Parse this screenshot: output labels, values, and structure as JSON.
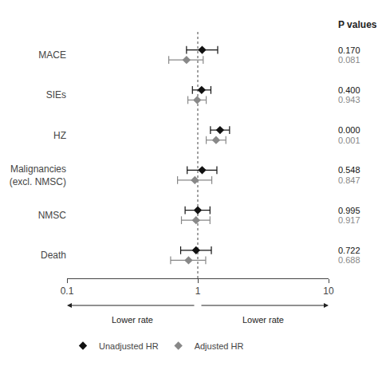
{
  "chart_data": {
    "type": "forest",
    "categories": [
      "MACE",
      "SIEs",
      "HZ",
      "Malignancies\n(excl. NMSC)",
      "NMSC",
      "Death"
    ],
    "series": [
      {
        "name": "Unadjusted HR",
        "color": "#111111",
        "marker": "diamond",
        "values": [
          1.08,
          1.07,
          1.48,
          1.08,
          1.0,
          0.97
        ],
        "ci_lo": [
          0.82,
          0.91,
          1.25,
          0.83,
          0.8,
          0.74
        ],
        "ci_hi": [
          1.42,
          1.26,
          1.75,
          1.4,
          1.24,
          1.27
        ],
        "p_values": [
          "0.170",
          "0.400",
          "0.000",
          "0.548",
          "0.995",
          "0.722"
        ]
      },
      {
        "name": "Adjusted HR",
        "color": "#888888",
        "marker": "diamond",
        "values": [
          0.82,
          0.99,
          1.38,
          0.95,
          0.97,
          0.85
        ],
        "ci_lo": [
          0.6,
          0.84,
          1.16,
          0.7,
          0.75,
          0.62
        ],
        "ci_hi": [
          1.1,
          1.16,
          1.64,
          1.28,
          1.24,
          1.15
        ],
        "p_values": [
          "0.081",
          "0.943",
          "0.001",
          "0.847",
          "0.917",
          "0.688"
        ]
      }
    ],
    "p_values_label": "P values",
    "annotations": [
      "Lower rate",
      "Lower rate"
    ],
    "ref_line": 1.0,
    "xlim": [
      0.1,
      10
    ],
    "xticks": [
      0.1,
      1,
      10
    ],
    "log": "x",
    "grid": false,
    "legend": "bottom"
  }
}
